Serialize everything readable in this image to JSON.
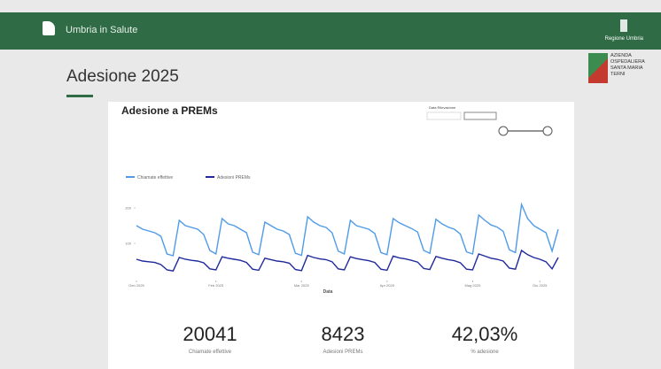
{
  "header": {
    "brand": "Umbria in Salute",
    "region": "Regione Umbria"
  },
  "logo": {
    "lines": [
      "AZIENDA",
      "OSPEDALIERA",
      "SANTA MARIA",
      "TERNI"
    ]
  },
  "slide_title": "Adesione 2025",
  "chart_data": {
    "type": "line",
    "title": "Adesione a PREMs",
    "filter_label": "Data Rilevazione",
    "x_label": "Data",
    "categories": [
      null,
      null,
      null,
      null,
      null,
      null,
      null,
      null,
      null,
      null,
      null,
      null,
      null,
      null,
      null,
      null,
      null,
      null,
      null,
      null,
      null,
      null,
      null,
      null,
      null,
      null,
      null,
      null,
      null,
      null,
      null,
      null,
      null,
      null,
      null,
      null,
      null,
      null,
      null,
      null,
      null,
      null,
      null,
      null,
      null,
      null,
      null,
      null,
      null,
      null,
      null,
      null,
      null,
      null,
      null,
      null,
      null,
      null,
      null,
      null,
      null,
      null,
      null,
      null,
      null,
      null,
      null,
      null,
      null,
      null
    ],
    "xticks": [
      {
        "value": 0,
        "label": "Gen 2025"
      },
      {
        "value": 13,
        "label": "Feb 2025"
      },
      {
        "value": 27,
        "label": "Mar 2025"
      },
      {
        "value": 41,
        "label": "Apr 2025"
      },
      {
        "value": 55,
        "label": "Mag 2025"
      },
      {
        "value": 66,
        "label": "Giu 2025"
      }
    ],
    "ylim": [
      0,
      250
    ],
    "yticks": [
      100,
      200
    ],
    "series": [
      {
        "name": "Chiamate effettive",
        "color": "#4f9be8",
        "values": [
          150,
          140,
          135,
          130,
          120,
          70,
          65,
          165,
          150,
          145,
          140,
          125,
          80,
          70,
          170,
          155,
          150,
          140,
          130,
          75,
          68,
          160,
          150,
          140,
          135,
          125,
          72,
          66,
          175,
          160,
          150,
          145,
          130,
          78,
          70,
          165,
          150,
          145,
          140,
          128,
          74,
          68,
          170,
          158,
          150,
          142,
          132,
          80,
          72,
          168,
          155,
          146,
          140,
          126,
          76,
          70,
          180,
          165,
          152,
          146,
          134,
          82,
          74,
          210,
          170,
          150,
          140,
          130,
          78,
          140
        ]
      },
      {
        "name": "Adesioni PREMs",
        "color": "#1f2a9c",
        "values": [
          55,
          50,
          48,
          46,
          40,
          25,
          22,
          60,
          55,
          52,
          50,
          45,
          28,
          25,
          62,
          58,
          55,
          52,
          46,
          27,
          24,
          58,
          54,
          50,
          48,
          44,
          26,
          23,
          66,
          60,
          56,
          54,
          48,
          28,
          25,
          62,
          57,
          54,
          51,
          46,
          27,
          24,
          64,
          59,
          56,
          52,
          47,
          29,
          26,
          63,
          58,
          54,
          51,
          45,
          27,
          25,
          70,
          64,
          58,
          55,
          50,
          30,
          27,
          80,
          68,
          60,
          55,
          48,
          28,
          60
        ]
      }
    ]
  },
  "kpis": [
    {
      "value": "20041",
      "label": "Chiamate effettive"
    },
    {
      "value": "8423",
      "label": "Adesioni PREMs"
    },
    {
      "value": "42,03%",
      "label": "% adesione"
    }
  ]
}
